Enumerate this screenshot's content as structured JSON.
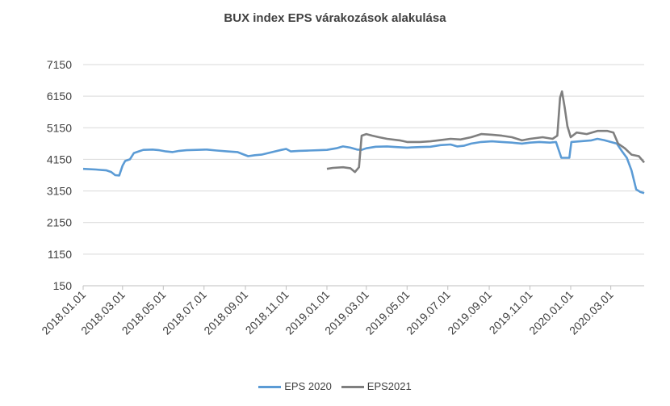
{
  "chart_data": {
    "type": "line",
    "title": "BUX index EPS várakozások  alakulása",
    "xlabel": "",
    "ylabel": "",
    "ylim": [
      150,
      7150
    ],
    "yticks": [
      "7150",
      "6150",
      "5150",
      "4150",
      "3150",
      "2150",
      "1150",
      "150"
    ],
    "xlim": [
      "2018-01-01",
      "2020-04-20"
    ],
    "xticks": [
      {
        "label": "2018.01.01",
        "date": "2018-01-01"
      },
      {
        "label": "2018.03.01",
        "date": "2018-03-01"
      },
      {
        "label": "2018.05.01",
        "date": "2018-05-01"
      },
      {
        "label": "2018.07.01",
        "date": "2018-07-01"
      },
      {
        "label": "2018.09.01",
        "date": "2018-09-01"
      },
      {
        "label": "2018.11.01",
        "date": "2018-11-01"
      },
      {
        "label": "2019.01.01",
        "date": "2019-01-01"
      },
      {
        "label": "2019.03.01",
        "date": "2019-03-01"
      },
      {
        "label": "2019.05.01",
        "date": "2019-05-01"
      },
      {
        "label": "2019.07.01",
        "date": "2019-07-01"
      },
      {
        "label": "2019.09.01",
        "date": "2019-09-01"
      },
      {
        "label": "2019.11.01",
        "date": "2019-11-01"
      },
      {
        "label": "2020.01.01",
        "date": "2020-01-01"
      },
      {
        "label": "2020.03.01",
        "date": "2020-03-01"
      }
    ],
    "grid": true,
    "legend": "bottom",
    "series": [
      {
        "name": "EPS 2020",
        "color": "#5b9bd5",
        "points": [
          [
            "2018-01-01",
            3850
          ],
          [
            "2018-01-20",
            3830
          ],
          [
            "2018-02-05",
            3800
          ],
          [
            "2018-02-12",
            3750
          ],
          [
            "2018-02-18",
            3650
          ],
          [
            "2018-02-24",
            3640
          ],
          [
            "2018-03-01",
            3950
          ],
          [
            "2018-03-05",
            4100
          ],
          [
            "2018-03-12",
            4150
          ],
          [
            "2018-03-18",
            4350
          ],
          [
            "2018-03-25",
            4400
          ],
          [
            "2018-04-01",
            4450
          ],
          [
            "2018-04-15",
            4460
          ],
          [
            "2018-04-25",
            4440
          ],
          [
            "2018-05-05",
            4400
          ],
          [
            "2018-05-15",
            4380
          ],
          [
            "2018-05-25",
            4420
          ],
          [
            "2018-06-05",
            4440
          ],
          [
            "2018-06-20",
            4450
          ],
          [
            "2018-07-05",
            4460
          ],
          [
            "2018-07-20",
            4430
          ],
          [
            "2018-08-05",
            4400
          ],
          [
            "2018-08-20",
            4380
          ],
          [
            "2018-08-30",
            4300
          ],
          [
            "2018-09-05",
            4250
          ],
          [
            "2018-09-15",
            4280
          ],
          [
            "2018-09-25",
            4300
          ],
          [
            "2018-10-05",
            4350
          ],
          [
            "2018-10-15",
            4400
          ],
          [
            "2018-10-25",
            4450
          ],
          [
            "2018-11-01",
            4480
          ],
          [
            "2018-11-08",
            4400
          ],
          [
            "2018-11-20",
            4420
          ],
          [
            "2018-12-05",
            4430
          ],
          [
            "2018-12-20",
            4440
          ],
          [
            "2019-01-01",
            4450
          ],
          [
            "2019-01-15",
            4500
          ],
          [
            "2019-01-25",
            4560
          ],
          [
            "2019-02-05",
            4520
          ],
          [
            "2019-02-15",
            4460
          ],
          [
            "2019-02-22",
            4450
          ],
          [
            "2019-03-01",
            4500
          ],
          [
            "2019-03-15",
            4550
          ],
          [
            "2019-04-01",
            4560
          ],
          [
            "2019-04-15",
            4540
          ],
          [
            "2019-05-01",
            4520
          ],
          [
            "2019-05-20",
            4540
          ],
          [
            "2019-06-05",
            4550
          ],
          [
            "2019-06-20",
            4600
          ],
          [
            "2019-07-05",
            4620
          ],
          [
            "2019-07-15",
            4560
          ],
          [
            "2019-07-25",
            4580
          ],
          [
            "2019-08-05",
            4650
          ],
          [
            "2019-08-20",
            4700
          ],
          [
            "2019-09-05",
            4720
          ],
          [
            "2019-09-20",
            4700
          ],
          [
            "2019-10-05",
            4680
          ],
          [
            "2019-10-20",
            4650
          ],
          [
            "2019-11-01",
            4680
          ],
          [
            "2019-11-15",
            4700
          ],
          [
            "2019-12-01",
            4680
          ],
          [
            "2019-12-10",
            4700
          ],
          [
            "2019-12-18",
            4200
          ],
          [
            "2019-12-30",
            4200
          ],
          [
            "2020-01-02",
            4700
          ],
          [
            "2020-01-15",
            4720
          ],
          [
            "2020-02-01",
            4750
          ],
          [
            "2020-02-10",
            4800
          ],
          [
            "2020-02-20",
            4760
          ],
          [
            "2020-03-01",
            4700
          ],
          [
            "2020-03-10",
            4650
          ],
          [
            "2020-03-18",
            4400
          ],
          [
            "2020-03-25",
            4200
          ],
          [
            "2020-04-01",
            3800
          ],
          [
            "2020-04-08",
            3200
          ],
          [
            "2020-04-14",
            3120
          ],
          [
            "2020-04-20",
            3080
          ]
        ]
      },
      {
        "name": "EPS2021",
        "color": "#7f7f7f",
        "points": [
          [
            "2019-01-01",
            3850
          ],
          [
            "2019-01-10",
            3880
          ],
          [
            "2019-01-25",
            3900
          ],
          [
            "2019-02-05",
            3870
          ],
          [
            "2019-02-12",
            3750
          ],
          [
            "2019-02-18",
            3900
          ],
          [
            "2019-02-22",
            4900
          ],
          [
            "2019-03-01",
            4950
          ],
          [
            "2019-03-10",
            4900
          ],
          [
            "2019-03-20",
            4850
          ],
          [
            "2019-04-01",
            4800
          ],
          [
            "2019-04-20",
            4750
          ],
          [
            "2019-05-01",
            4700
          ],
          [
            "2019-05-20",
            4700
          ],
          [
            "2019-06-05",
            4720
          ],
          [
            "2019-06-20",
            4760
          ],
          [
            "2019-07-05",
            4800
          ],
          [
            "2019-07-20",
            4780
          ],
          [
            "2019-08-05",
            4850
          ],
          [
            "2019-08-20",
            4950
          ],
          [
            "2019-09-05",
            4930
          ],
          [
            "2019-09-20",
            4900
          ],
          [
            "2019-10-05",
            4850
          ],
          [
            "2019-10-20",
            4750
          ],
          [
            "2019-11-01",
            4800
          ],
          [
            "2019-11-20",
            4850
          ],
          [
            "2019-12-05",
            4800
          ],
          [
            "2019-12-12",
            4900
          ],
          [
            "2019-12-16",
            6100
          ],
          [
            "2019-12-19",
            6300
          ],
          [
            "2019-12-23",
            5800
          ],
          [
            "2019-12-27",
            5200
          ],
          [
            "2020-01-01",
            4850
          ],
          [
            "2020-01-10",
            5000
          ],
          [
            "2020-01-25",
            4950
          ],
          [
            "2020-02-10",
            5050
          ],
          [
            "2020-02-25",
            5050
          ],
          [
            "2020-03-05",
            5000
          ],
          [
            "2020-03-12",
            4650
          ],
          [
            "2020-03-22",
            4500
          ],
          [
            "2020-04-01",
            4300
          ],
          [
            "2020-04-12",
            4250
          ],
          [
            "2020-04-20",
            4050
          ]
        ]
      }
    ]
  }
}
